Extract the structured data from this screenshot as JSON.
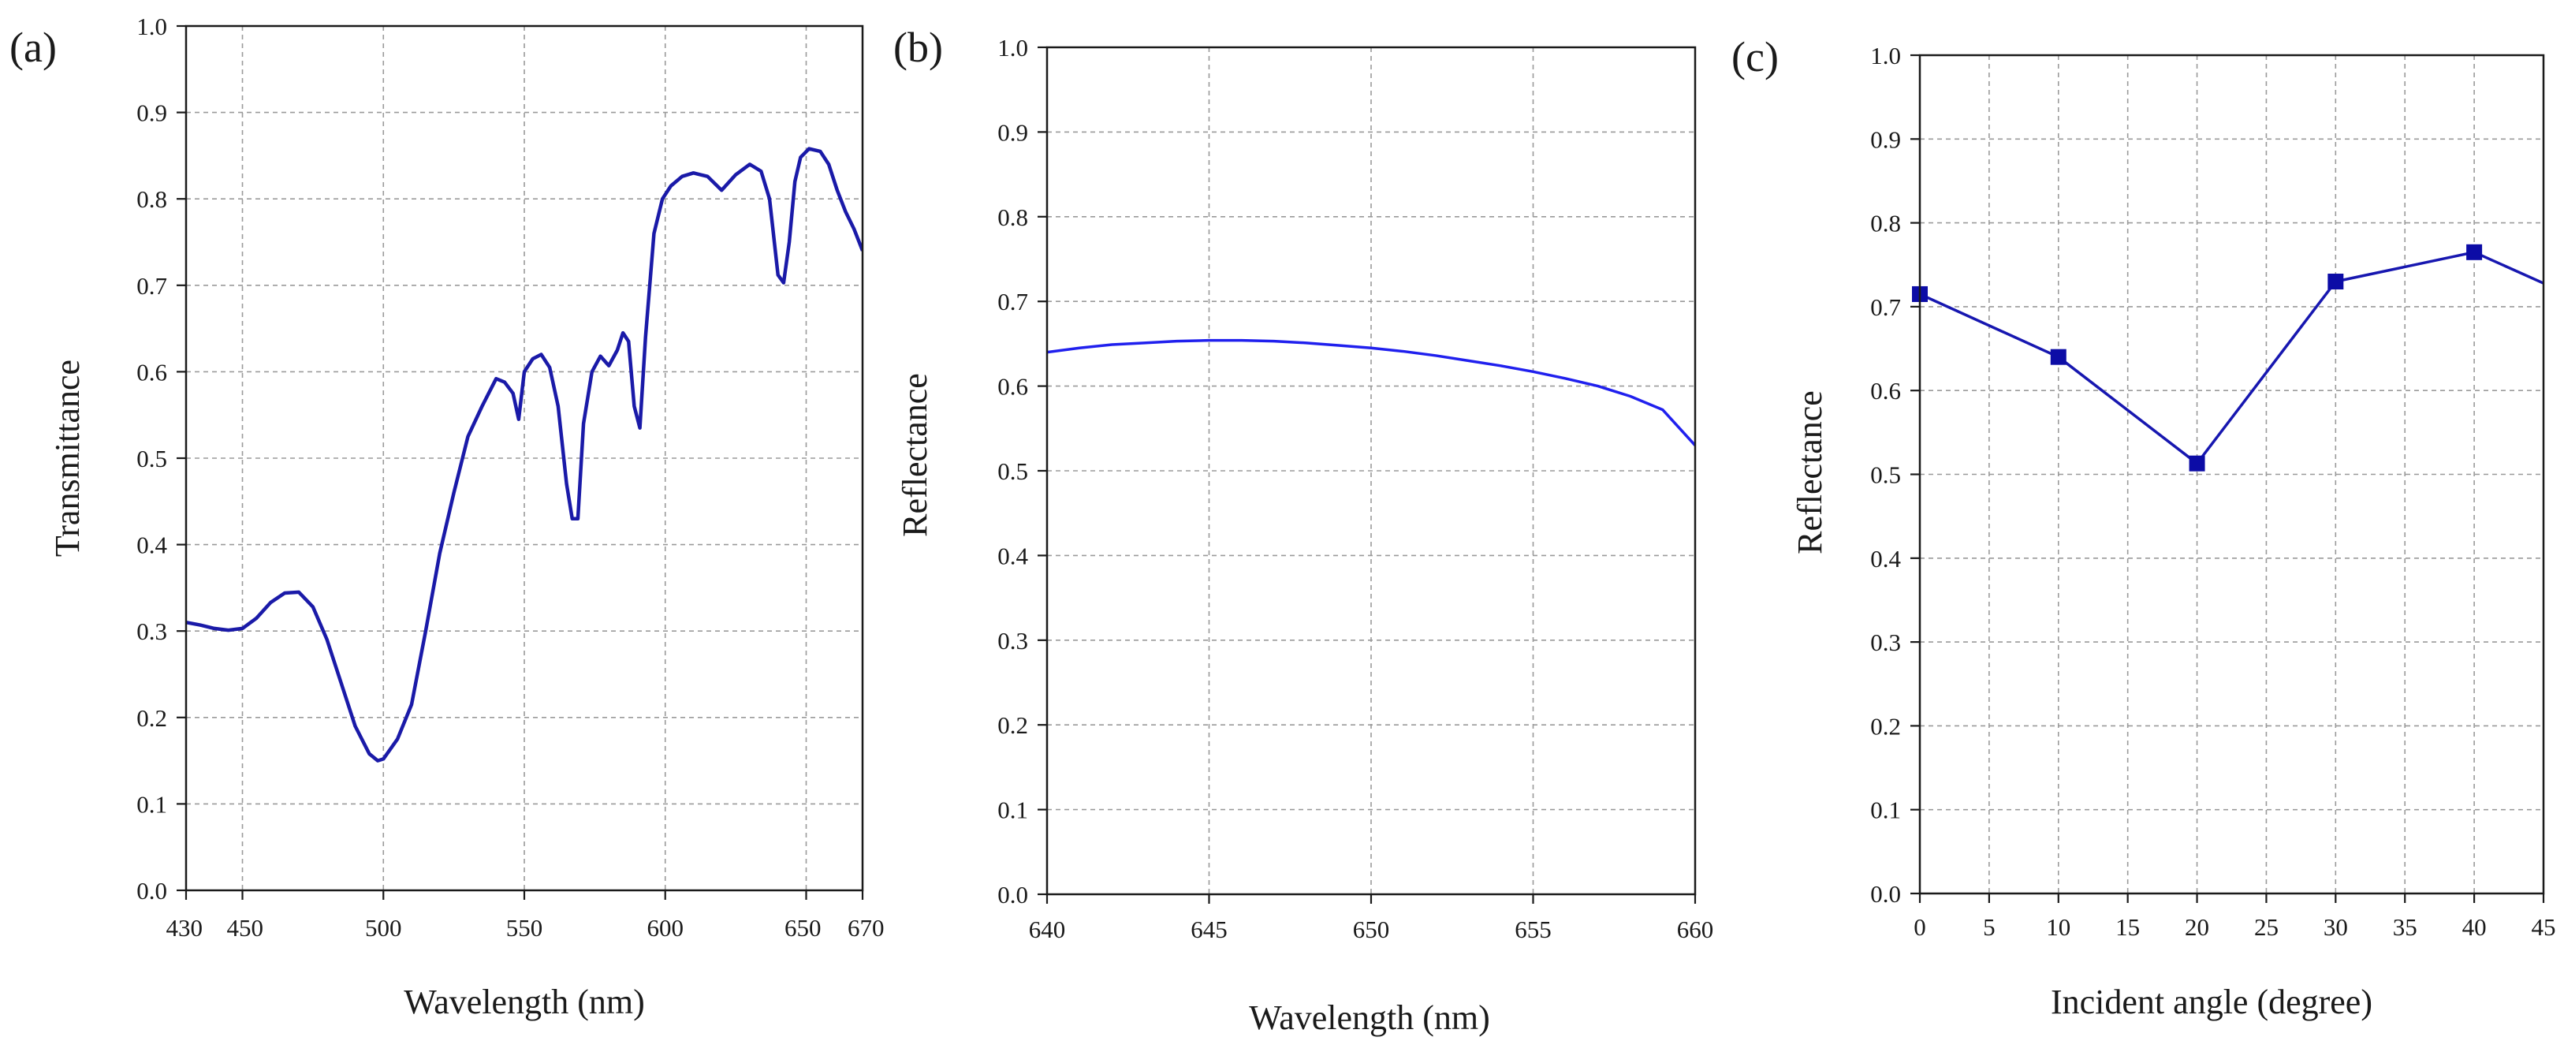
{
  "colors": {
    "series_a": "#1a1aa8",
    "series_b": "#2020ee",
    "series_c": "#1717b0",
    "marker_c": "#0c0ca6",
    "axis": "#1a1a1a",
    "grid": "#9a9a9a"
  },
  "chart_data": [
    {
      "id": "a",
      "panel_label": "(a)",
      "type": "line",
      "title": "",
      "xlabel": "Wavelength (nm)",
      "ylabel": "Transmittance",
      "xlim": [
        430,
        670
      ],
      "ylim": [
        0.0,
        1.0
      ],
      "xticks": [
        430,
        450,
        500,
        550,
        600,
        650,
        670
      ],
      "xtick_labels": [
        "430",
        "450",
        "500",
        "550",
        "600",
        "650",
        "670"
      ],
      "xgrid": [
        450,
        500,
        550,
        600,
        650
      ],
      "yticks": [
        0.0,
        0.1,
        0.2,
        0.3,
        0.4,
        0.5,
        0.6,
        0.7,
        0.8,
        0.9,
        1.0
      ],
      "ytick_labels": [
        "0.0",
        "0.1",
        "0.2",
        "0.3",
        "0.4",
        "0.5",
        "0.6",
        "0.7",
        "0.8",
        "0.9",
        "1.0"
      ],
      "grid": true,
      "series": [
        {
          "name": "Transmittance",
          "x": [
            430,
            435,
            440,
            445,
            450,
            455,
            460,
            465,
            470,
            475,
            480,
            485,
            490,
            495,
            498,
            500,
            505,
            510,
            515,
            520,
            525,
            530,
            535,
            540,
            543,
            546,
            548,
            550,
            553,
            556,
            559,
            562,
            565,
            567,
            569,
            571,
            574,
            577,
            580,
            583,
            585,
            587,
            589,
            591,
            593,
            596,
            599,
            602,
            606,
            610,
            615,
            620,
            625,
            630,
            634,
            637,
            640,
            642,
            644,
            646,
            648,
            651,
            655,
            658,
            661,
            664,
            667,
            670
          ],
          "y": [
            0.31,
            0.307,
            0.303,
            0.301,
            0.303,
            0.315,
            0.333,
            0.344,
            0.345,
            0.328,
            0.29,
            0.24,
            0.19,
            0.158,
            0.15,
            0.152,
            0.175,
            0.215,
            0.3,
            0.39,
            0.46,
            0.525,
            0.56,
            0.592,
            0.588,
            0.575,
            0.545,
            0.6,
            0.615,
            0.62,
            0.605,
            0.56,
            0.47,
            0.43,
            0.43,
            0.54,
            0.6,
            0.618,
            0.607,
            0.625,
            0.645,
            0.635,
            0.56,
            0.535,
            0.64,
            0.76,
            0.8,
            0.815,
            0.826,
            0.83,
            0.826,
            0.81,
            0.828,
            0.84,
            0.832,
            0.8,
            0.712,
            0.703,
            0.75,
            0.82,
            0.848,
            0.858,
            0.855,
            0.84,
            0.81,
            0.785,
            0.765,
            0.74
          ]
        }
      ]
    },
    {
      "id": "b",
      "panel_label": "(b)",
      "type": "line",
      "title": "",
      "xlabel": "Wavelength (nm)",
      "ylabel": "Reflectance",
      "xlim": [
        640,
        660
      ],
      "ylim": [
        0.0,
        1.0
      ],
      "xticks": [
        640,
        645,
        650,
        655,
        660
      ],
      "xtick_labels": [
        "640",
        "645",
        "650",
        "655",
        "660"
      ],
      "xgrid": [
        645,
        650,
        655
      ],
      "yticks": [
        0.0,
        0.1,
        0.2,
        0.3,
        0.4,
        0.5,
        0.6,
        0.7,
        0.8,
        0.9,
        1.0
      ],
      "ytick_labels": [
        "0.0",
        "0.1",
        "0.2",
        "0.3",
        "0.4",
        "0.5",
        "0.6",
        "0.7",
        "0.8",
        "0.9",
        "1.0"
      ],
      "grid": true,
      "series": [
        {
          "name": "Reflectance",
          "x": [
            640,
            641,
            642,
            643,
            644,
            645,
            646,
            647,
            648,
            649,
            650,
            651,
            652,
            653,
            654,
            655,
            656,
            657,
            658,
            659,
            660
          ],
          "y": [
            0.64,
            0.645,
            0.649,
            0.651,
            0.653,
            0.654,
            0.654,
            0.653,
            0.651,
            0.648,
            0.645,
            0.641,
            0.636,
            0.63,
            0.624,
            0.617,
            0.609,
            0.6,
            0.588,
            0.572,
            0.53
          ]
        }
      ]
    },
    {
      "id": "c",
      "panel_label": "(c)",
      "type": "line",
      "title": "",
      "xlabel": "Incident angle (degree)",
      "ylabel": "Reflectance",
      "xlim": [
        0,
        45
      ],
      "ylim": [
        0.0,
        1.0
      ],
      "xticks": [
        0,
        5,
        10,
        15,
        20,
        25,
        30,
        35,
        40,
        45
      ],
      "xtick_labels": [
        "0",
        "5",
        "10",
        "15",
        "20",
        "25",
        "30",
        "35",
        "40",
        "45"
      ],
      "xgrid": [
        5,
        10,
        15,
        20,
        25,
        30,
        35,
        40
      ],
      "yticks": [
        0.0,
        0.1,
        0.2,
        0.3,
        0.4,
        0.5,
        0.6,
        0.7,
        0.8,
        0.9,
        1.0
      ],
      "ytick_labels": [
        "0.0",
        "0.1",
        "0.2",
        "0.3",
        "0.4",
        "0.5",
        "0.6",
        "0.7",
        "0.8",
        "0.9",
        "1.0"
      ],
      "grid": true,
      "series": [
        {
          "name": "Reflectance",
          "x": [
            0,
            10,
            20,
            30,
            40,
            45
          ],
          "y": [
            0.715,
            0.64,
            0.513,
            0.73,
            0.765,
            0.728
          ],
          "markers": [
            0,
            10,
            20,
            30,
            40
          ]
        }
      ]
    }
  ]
}
